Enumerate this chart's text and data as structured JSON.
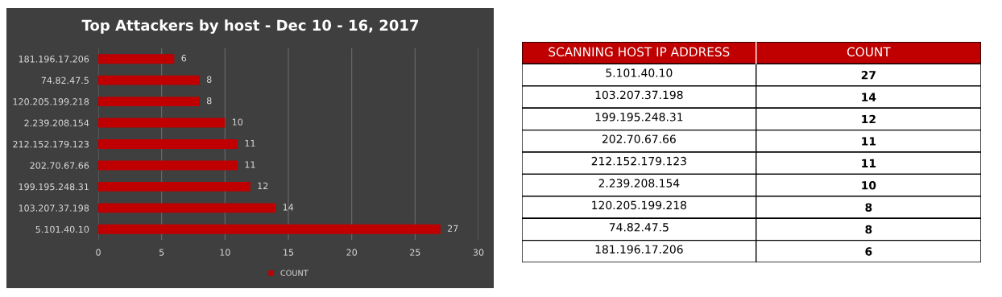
{
  "chart_data": [
    {
      "type": "bar",
      "orientation": "horizontal",
      "title": "Top Attackers by host - Dec 10 - 16, 2017",
      "categories": [
        "181.196.17.206",
        "74.82.47.5",
        "120.205.199.218",
        "2.239.208.154",
        "212.152.179.123",
        "202.70.67.66",
        "199.195.248.31",
        "103.207.37.198",
        "5.101.40.10"
      ],
      "series": [
        {
          "name": "COUNT",
          "color": "#c00000",
          "values": [
            6,
            8,
            8,
            10,
            11,
            11,
            12,
            14,
            27
          ]
        }
      ],
      "xlim": [
        0,
        30
      ],
      "xticks": [
        0,
        5,
        10,
        15,
        20,
        25,
        30
      ],
      "grid": "x",
      "legend": "bottom",
      "data_labels": true
    },
    {
      "type": "other",
      "xlabel": "SCANNING HOST IP ADDRESS",
      "categories": [
        "5.101.40.10",
        "103.207.37.198",
        "199.195.248.31",
        "202.70.67.66",
        "212.152.179.123",
        "2.239.208.154",
        "120.205.199.218",
        "74.82.47.5",
        "181.196.17.206"
      ],
      "series": [
        {
          "name": "COUNT",
          "values": [
            27,
            14,
            12,
            11,
            11,
            10,
            8,
            8,
            6
          ]
        }
      ],
      "data_labels": true
    }
  ]
}
